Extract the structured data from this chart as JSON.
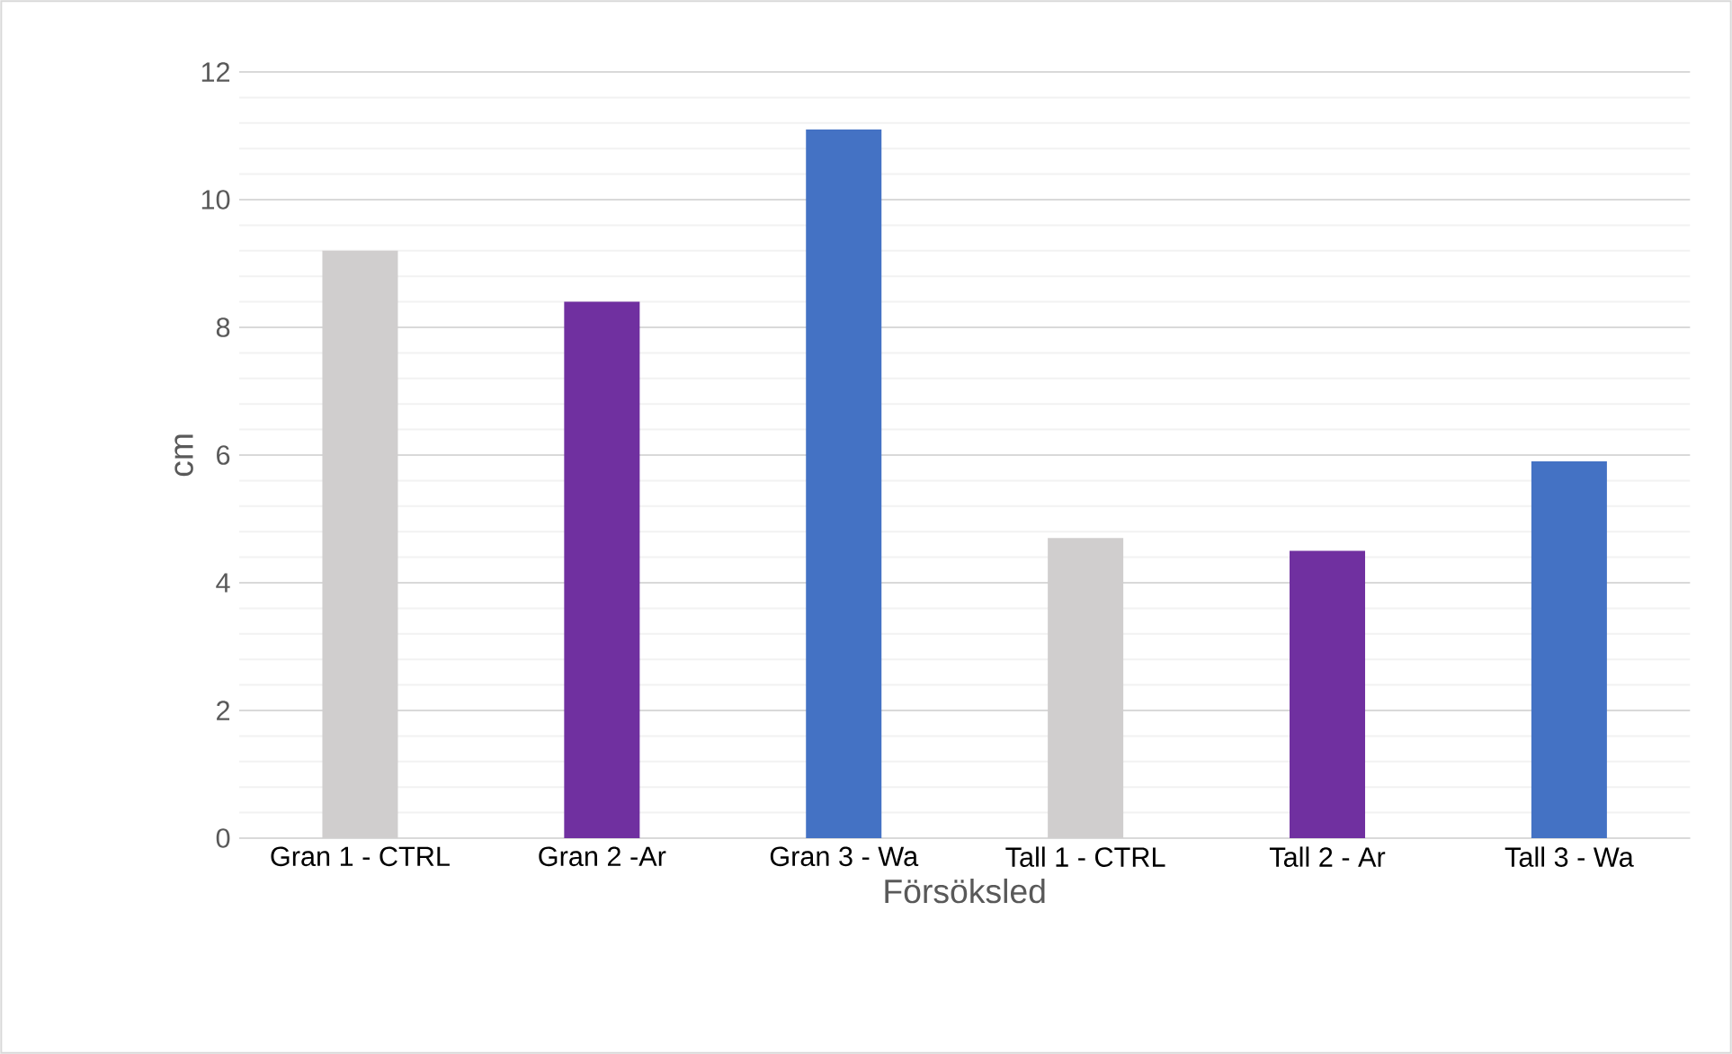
{
  "chart_data": {
    "type": "bar",
    "xlabel": "Försöksled",
    "ylabel": "cm",
    "categories": [
      "Gran 1 - CTRL",
      "Gran 2 -Ar",
      "Gran 3 - Wa",
      "Tall 1 - CTRL",
      "Tall 2 - Ar",
      "Tall 3 - Wa"
    ],
    "values": [
      9.2,
      8.4,
      11.1,
      4.7,
      4.5,
      5.9
    ],
    "colors": [
      "#d0cece",
      "#7030a0",
      "#4472c4",
      "#d0cece",
      "#7030a0",
      "#4472c4"
    ],
    "ylim": [
      0,
      12
    ],
    "yticks": [
      0,
      2,
      4,
      6,
      8,
      10,
      12
    ],
    "grid": "y"
  }
}
